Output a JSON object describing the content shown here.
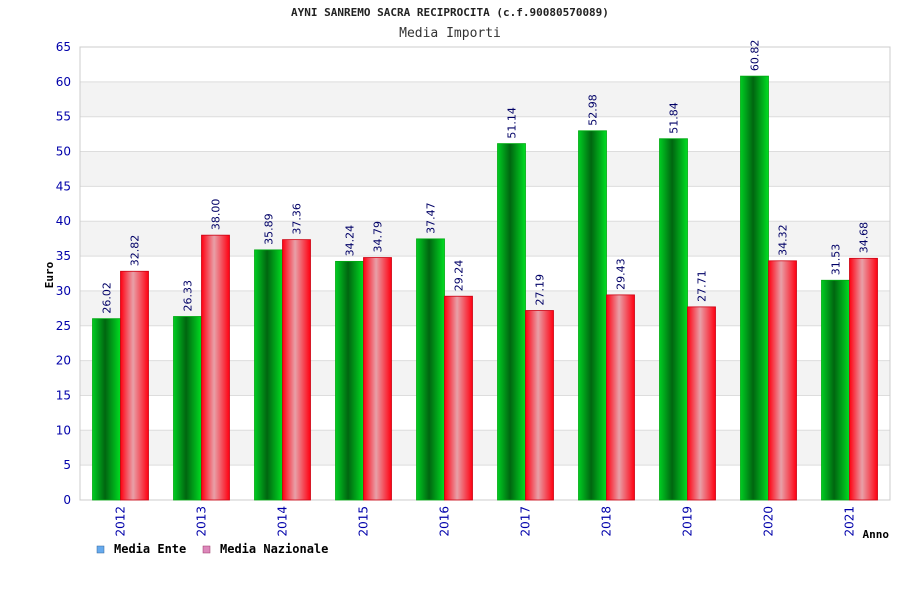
{
  "chart_data": {
    "type": "bar",
    "title": "AYNI SANREMO SACRA RECIPROCITA (c.f.90080570089)",
    "subtitle": "Media Importi",
    "xlabel": "Anno",
    "ylabel": "Euro",
    "categories": [
      "2012",
      "2013",
      "2014",
      "2015",
      "2016",
      "2017",
      "2018",
      "2019",
      "2020",
      "2021"
    ],
    "series": [
      {
        "name": "Media Ente",
        "color": "#00cc22",
        "values": [
          26.02,
          26.33,
          35.89,
          34.24,
          37.47,
          51.14,
          52.98,
          51.84,
          60.82,
          31.53
        ],
        "labels": [
          "26.02",
          "26.33",
          "35.89",
          "34.24",
          "37.47",
          "51.14",
          "52.98",
          "51.84",
          "60.82",
          "31.53"
        ]
      },
      {
        "name": "Media Nazionale",
        "color": "#ee1122",
        "values": [
          32.82,
          38.0,
          37.36,
          34.79,
          29.24,
          27.19,
          29.43,
          27.71,
          34.32,
          34.68
        ],
        "labels": [
          "32.82",
          "38.00",
          "37.36",
          "34.79",
          "29.24",
          "27.19",
          "29.43",
          "27.71",
          "34.32",
          "34.68"
        ]
      }
    ],
    "ylim": [
      0,
      65
    ],
    "yticks": [
      0,
      5,
      10,
      15,
      20,
      25,
      30,
      35,
      40,
      45,
      50,
      55,
      60,
      65
    ],
    "grid": true,
    "legend_position": "bottom-left",
    "legend_swatch_colors": [
      "#66aaee",
      "#dd88bb"
    ]
  }
}
